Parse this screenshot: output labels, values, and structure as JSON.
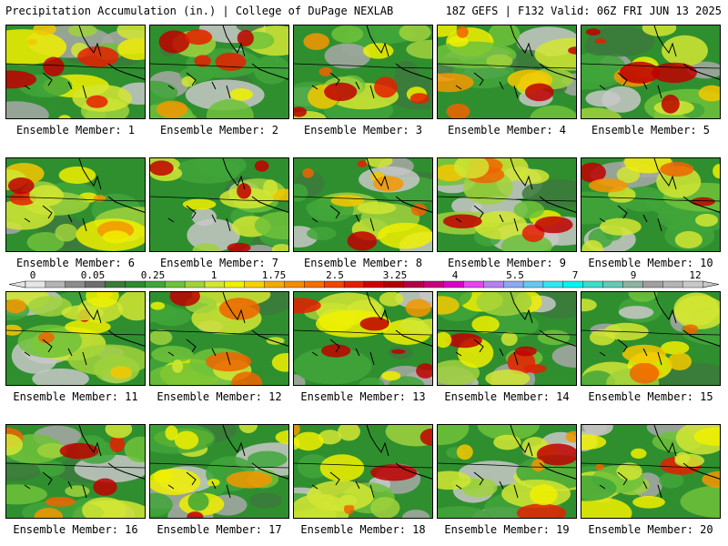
{
  "header": {
    "left": "Precipitation Accumulation (in.) | College of DuPage NEXLAB",
    "right": "18Z GEFS | F132 Valid: 06Z FRI JUN 13 2025"
  },
  "colorbar": {
    "ticks": [
      "0",
      "0.05",
      "0.25",
      "1",
      "1.75",
      "2.5",
      "3.25",
      "4",
      "5.5",
      "7",
      "9",
      "12"
    ],
    "colors": [
      "#e6e6e6",
      "#b4b4b4",
      "#8c8c8c",
      "#6e6e6e",
      "#3c7a3c",
      "#2e8a2e",
      "#41a63a",
      "#6ec23a",
      "#a0d23c",
      "#d2e632",
      "#f0f000",
      "#f5d200",
      "#f5aa00",
      "#f58c00",
      "#f56e00",
      "#f04600",
      "#e61e00",
      "#d20000",
      "#b40000",
      "#b40046",
      "#c8007d",
      "#dc00c8",
      "#e646f0",
      "#b482f0",
      "#8caaf0",
      "#64c8f0",
      "#32e6f0",
      "#00f5f0",
      "#3cdcc8",
      "#64c8b4",
      "#8cb4a0",
      "#a0a0a0",
      "#b4b4b4",
      "#c8c8c8"
    ]
  },
  "panels": [
    {
      "label": "Ensemble Member: 1"
    },
    {
      "label": "Ensemble Member: 2"
    },
    {
      "label": "Ensemble Member: 3"
    },
    {
      "label": "Ensemble Member: 4"
    },
    {
      "label": "Ensemble Member: 5"
    },
    {
      "label": "Ensemble Member: 6"
    },
    {
      "label": "Ensemble Member: 7"
    },
    {
      "label": "Ensemble Member: 8"
    },
    {
      "label": "Ensemble Member: 9"
    },
    {
      "label": "Ensemble Member: 10"
    },
    {
      "label": "Ensemble Member: 11"
    },
    {
      "label": "Ensemble Member: 12"
    },
    {
      "label": "Ensemble Member: 13"
    },
    {
      "label": "Ensemble Member: 14"
    },
    {
      "label": "Ensemble Member: 15"
    },
    {
      "label": "Ensemble Member: 16"
    },
    {
      "label": "Ensemble Member: 17"
    },
    {
      "label": "Ensemble Member: 18"
    },
    {
      "label": "Ensemble Member: 19"
    },
    {
      "label": "Ensemble Member: 20"
    }
  ]
}
